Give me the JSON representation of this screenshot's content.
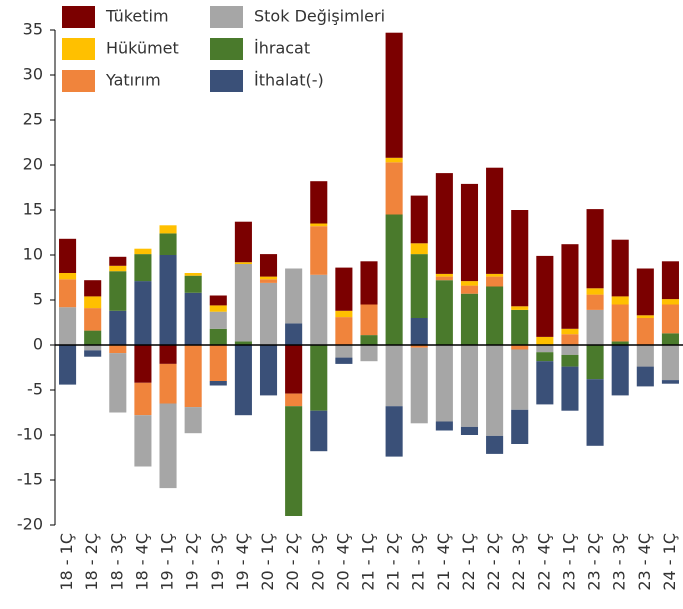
{
  "chart_data": {
    "type": "bar",
    "stacked": true,
    "categories": [
      "18 - 1Ç",
      "18 - 2Ç",
      "18 - 3Ç",
      "18 - 4Ç",
      "19 - 1Ç",
      "19 - 2Ç",
      "19 - 3Ç",
      "19 - 4Ç",
      "20 - 1Ç",
      "20 - 2Ç",
      "20 - 3Ç",
      "20 - 4Ç",
      "21 - 1Ç",
      "21 - 2Ç",
      "21 - 3Ç",
      "21 - 4Ç",
      "22 - 1Ç",
      "22 - 2Ç",
      "22 - 3Ç",
      "22 - 4Ç",
      "23 - 1Ç",
      "23 - 2Ç",
      "23 - 3Ç",
      "23 - 4Ç",
      "24 - 1Ç"
    ],
    "series": [
      {
        "name": "Tüketim",
        "color": "#7b0000",
        "values": [
          3.8,
          1.8,
          1.0,
          -4.2,
          -2.1,
          0,
          1.1,
          4.5,
          2.5,
          -5.4,
          4.7,
          4.8,
          4.8,
          13.9,
          5.3,
          11.2,
          10.8,
          11.8,
          10.7,
          9.0,
          9.4,
          8.8,
          6.3,
          5.2,
          4.2
        ]
      },
      {
        "name": "Hükümet",
        "color": "#ffc000",
        "values": [
          0.7,
          1.3,
          0.6,
          0.6,
          0.9,
          0.3,
          0.7,
          0.2,
          0.3,
          0,
          0.3,
          0.7,
          0,
          0.5,
          1.2,
          0.3,
          0.5,
          0.3,
          0.4,
          0.9,
          0.6,
          0.7,
          0.9,
          0.3,
          0.6
        ]
      },
      {
        "name": "Yatırım",
        "color": "#f0843c",
        "values": [
          3.1,
          2.5,
          -0.9,
          -3.6,
          -4.4,
          -6.9,
          -4.0,
          0,
          0.4,
          -1.4,
          5.4,
          3.1,
          3.4,
          5.8,
          -0.3,
          0.4,
          0.9,
          1.1,
          -0.5,
          0,
          1.2,
          1.7,
          4.1,
          3.0,
          3.2
        ]
      },
      {
        "name": "Stok Değişimleri",
        "color": "#a6a6a6",
        "values": [
          4.2,
          -0.6,
          -6.6,
          -5.7,
          -9.4,
          -2.9,
          1.9,
          8.6,
          6.9,
          6.1,
          7.8,
          -1.4,
          -1.8,
          -6.8,
          -8.4,
          -8.5,
          -9.1,
          -10.1,
          -6.7,
          -0.8,
          -1.1,
          3.9,
          0,
          -2.4,
          -3.9
        ]
      },
      {
        "name": "İhracat",
        "color": "#4a7a2c",
        "values": [
          0,
          1.6,
          4.4,
          3.0,
          2.4,
          1.9,
          1.8,
          0.4,
          0,
          -12.2,
          -7.3,
          0,
          1.1,
          14.5,
          7.1,
          7.2,
          5.7,
          6.5,
          3.9,
          -1.0,
          -1.3,
          -3.8,
          0.4,
          0,
          1.3
        ]
      },
      {
        "name": "İthalat(-)",
        "color": "#3a5078",
        "values": [
          -4.4,
          -0.7,
          3.8,
          7.1,
          10,
          5.8,
          -0.5,
          -7.8,
          -5.6,
          2.4,
          -4.5,
          -0.7,
          0,
          -5.6,
          3.0,
          -1.0,
          -0.9,
          -2.0,
          -3.8,
          -4.8,
          -4.9,
          -7.4,
          -5.6,
          -2.2,
          -0.4
        ]
      }
    ],
    "ylim": [
      -20,
      35
    ],
    "yticks": [
      -20,
      -15,
      -10,
      -5,
      0,
      5,
      10,
      15,
      20,
      25,
      30,
      35
    ],
    "grid": false,
    "legend": "upper left"
  }
}
